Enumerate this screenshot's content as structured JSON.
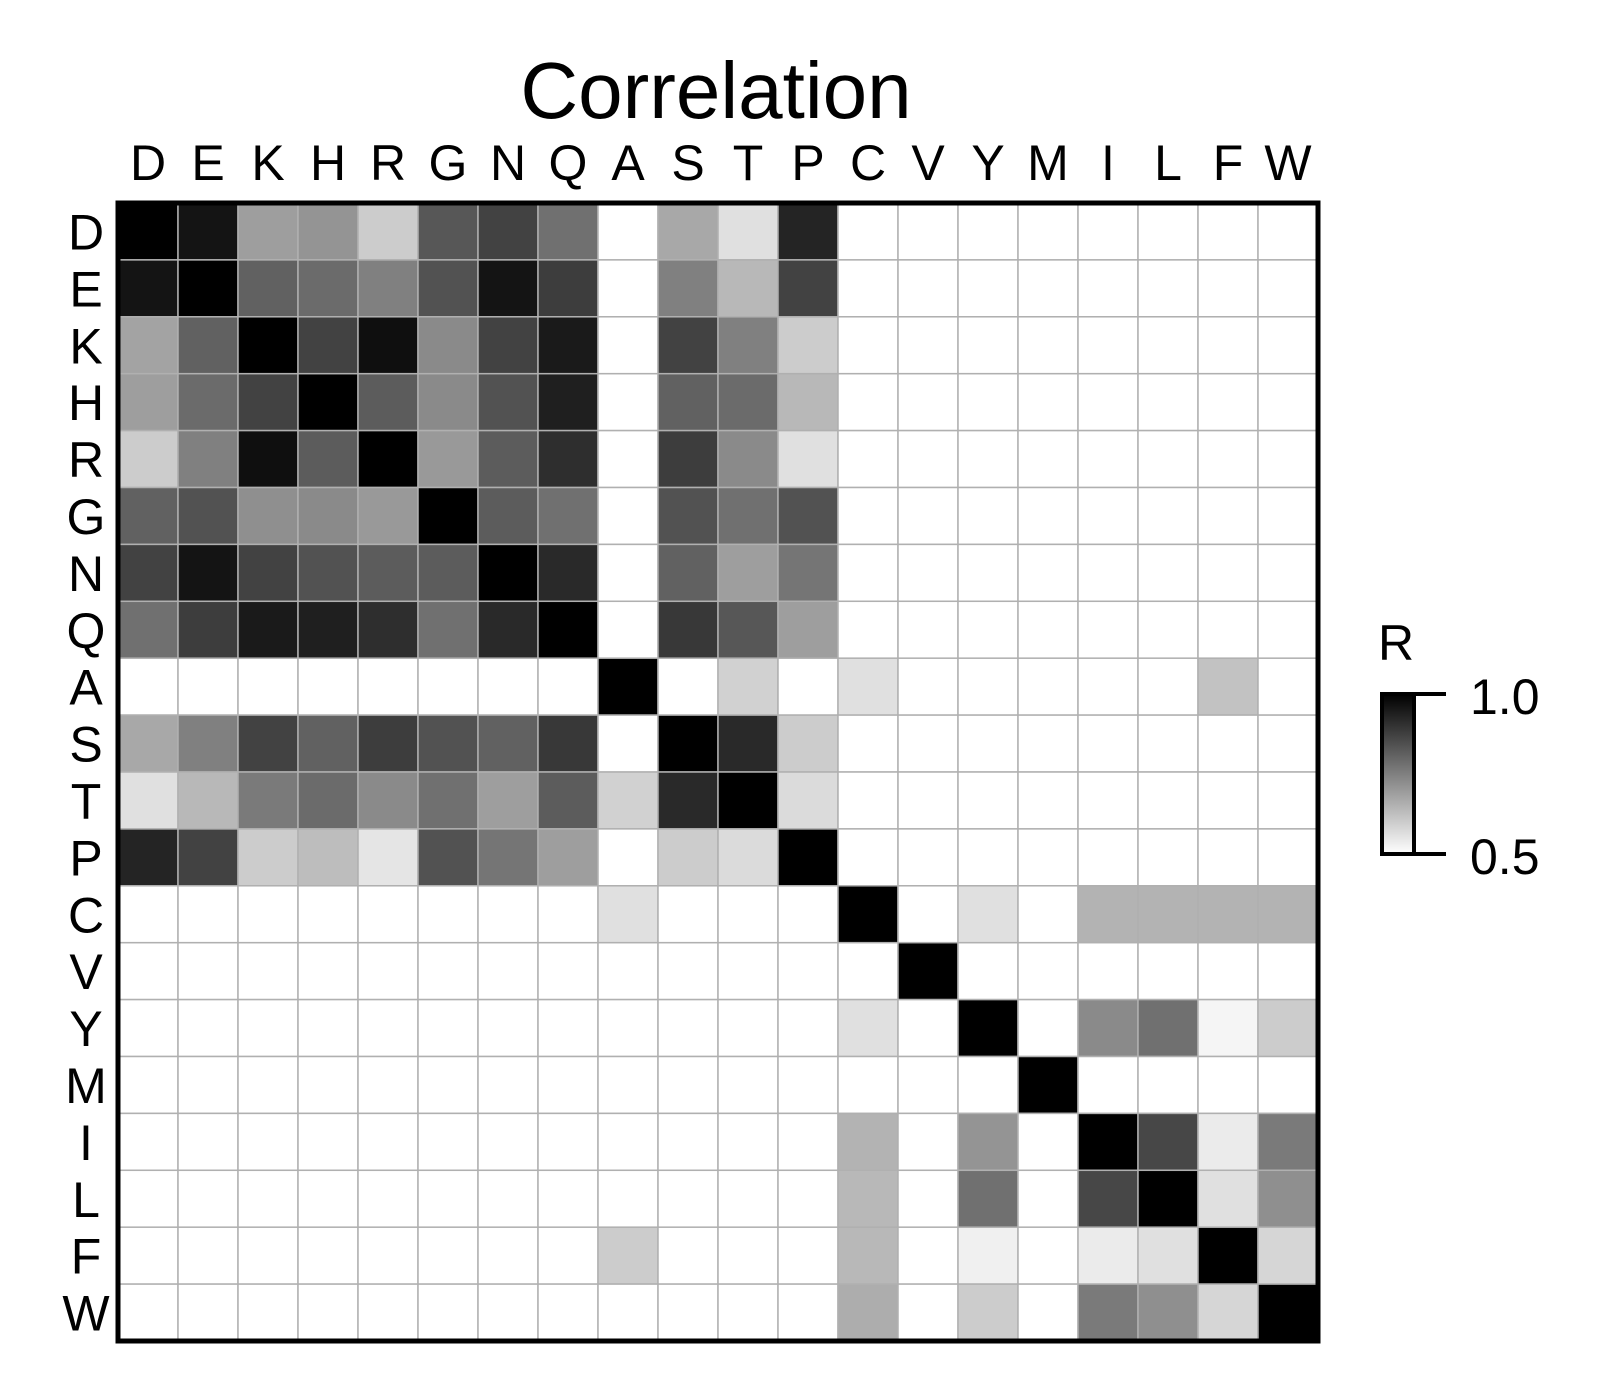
{
  "chart_data": {
    "type": "heatmap",
    "title": "Correlation",
    "labels": [
      "D",
      "E",
      "K",
      "H",
      "R",
      "G",
      "N",
      "Q",
      "A",
      "S",
      "T",
      "P",
      "C",
      "V",
      "Y",
      "M",
      "I",
      "L",
      "F",
      "W"
    ],
    "value_range": [
      0.5,
      1.0
    ],
    "colors": {
      "low": "#ffffff",
      "high": "#000000",
      "grid": "#b0b0b0",
      "frame": "#000000"
    },
    "legend": {
      "label": "R",
      "max_label": "1.0",
      "min_label": "0.5",
      "placement": "right"
    },
    "matrix": [
      [
        1.0,
        0.96,
        0.69,
        0.71,
        0.6,
        0.83,
        0.87,
        0.78,
        0.5,
        0.67,
        0.56,
        0.93,
        0.5,
        0.5,
        0.5,
        0.5,
        0.5,
        0.5,
        0.5,
        0.5
      ],
      [
        0.96,
        1.0,
        0.81,
        0.79,
        0.75,
        0.84,
        0.96,
        0.88,
        0.5,
        0.75,
        0.64,
        0.87,
        0.5,
        0.5,
        0.5,
        0.5,
        0.5,
        0.5,
        0.5,
        0.5
      ],
      [
        0.68,
        0.81,
        1.0,
        0.87,
        0.97,
        0.73,
        0.87,
        0.95,
        0.5,
        0.87,
        0.75,
        0.6,
        0.5,
        0.5,
        0.5,
        0.5,
        0.5,
        0.5,
        0.5,
        0.5
      ],
      [
        0.69,
        0.79,
        0.87,
        1.0,
        0.82,
        0.73,
        0.84,
        0.94,
        0.5,
        0.81,
        0.79,
        0.64,
        0.5,
        0.5,
        0.5,
        0.5,
        0.5,
        0.5,
        0.5,
        0.5
      ],
      [
        0.6,
        0.75,
        0.97,
        0.82,
        1.0,
        0.7,
        0.82,
        0.91,
        0.5,
        0.88,
        0.73,
        0.56,
        0.5,
        0.5,
        0.5,
        0.5,
        0.5,
        0.5,
        0.5,
        0.5
      ],
      [
        0.81,
        0.84,
        0.72,
        0.73,
        0.7,
        1.0,
        0.82,
        0.78,
        0.5,
        0.84,
        0.78,
        0.84,
        0.5,
        0.5,
        0.5,
        0.5,
        0.5,
        0.5,
        0.5,
        0.5
      ],
      [
        0.87,
        0.96,
        0.87,
        0.84,
        0.82,
        0.82,
        1.0,
        0.92,
        0.5,
        0.81,
        0.69,
        0.77,
        0.5,
        0.5,
        0.5,
        0.5,
        0.5,
        0.5,
        0.5,
        0.5
      ],
      [
        0.78,
        0.88,
        0.95,
        0.94,
        0.91,
        0.78,
        0.92,
        1.0,
        0.5,
        0.89,
        0.83,
        0.69,
        0.5,
        0.5,
        0.5,
        0.5,
        0.5,
        0.5,
        0.5,
        0.5
      ],
      [
        0.5,
        0.5,
        0.5,
        0.5,
        0.5,
        0.5,
        0.5,
        0.5,
        1.0,
        0.5,
        0.59,
        0.5,
        0.56,
        0.5,
        0.5,
        0.5,
        0.5,
        0.5,
        0.62,
        0.5
      ],
      [
        0.67,
        0.75,
        0.87,
        0.81,
        0.88,
        0.84,
        0.81,
        0.89,
        0.5,
        1.0,
        0.92,
        0.6,
        0.5,
        0.5,
        0.5,
        0.5,
        0.5,
        0.5,
        0.5,
        0.5
      ],
      [
        0.56,
        0.64,
        0.76,
        0.79,
        0.73,
        0.78,
        0.69,
        0.82,
        0.59,
        0.92,
        1.0,
        0.57,
        0.5,
        0.5,
        0.5,
        0.5,
        0.5,
        0.5,
        0.5,
        0.5
      ],
      [
        0.93,
        0.87,
        0.6,
        0.63,
        0.55,
        0.84,
        0.77,
        0.69,
        0.5,
        0.6,
        0.57,
        1.0,
        0.5,
        0.5,
        0.5,
        0.5,
        0.5,
        0.5,
        0.5,
        0.5
      ],
      [
        0.5,
        0.5,
        0.5,
        0.5,
        0.5,
        0.5,
        0.5,
        0.5,
        0.56,
        0.5,
        0.5,
        0.5,
        1.0,
        0.5,
        0.56,
        0.5,
        0.65,
        0.65,
        0.65,
        0.65
      ],
      [
        0.5,
        0.5,
        0.5,
        0.5,
        0.5,
        0.5,
        0.5,
        0.5,
        0.5,
        0.5,
        0.5,
        0.5,
        0.5,
        1.0,
        0.5,
        0.5,
        0.5,
        0.5,
        0.5,
        0.5
      ],
      [
        0.5,
        0.5,
        0.5,
        0.5,
        0.5,
        0.5,
        0.5,
        0.5,
        0.5,
        0.5,
        0.5,
        0.5,
        0.56,
        0.5,
        1.0,
        0.5,
        0.73,
        0.78,
        0.52,
        0.6
      ],
      [
        0.5,
        0.5,
        0.5,
        0.5,
        0.5,
        0.5,
        0.5,
        0.5,
        0.5,
        0.5,
        0.5,
        0.5,
        0.5,
        0.5,
        0.5,
        1.0,
        0.5,
        0.5,
        0.5,
        0.5
      ],
      [
        0.5,
        0.5,
        0.5,
        0.5,
        0.5,
        0.5,
        0.5,
        0.5,
        0.5,
        0.5,
        0.5,
        0.5,
        0.65,
        0.5,
        0.71,
        0.5,
        1.0,
        0.86,
        0.54,
        0.76
      ],
      [
        0.5,
        0.5,
        0.5,
        0.5,
        0.5,
        0.5,
        0.5,
        0.5,
        0.5,
        0.5,
        0.5,
        0.5,
        0.64,
        0.5,
        0.78,
        0.5,
        0.86,
        1.0,
        0.56,
        0.72
      ],
      [
        0.5,
        0.5,
        0.5,
        0.5,
        0.5,
        0.5,
        0.5,
        0.5,
        0.6,
        0.5,
        0.5,
        0.5,
        0.64,
        0.5,
        0.53,
        0.5,
        0.54,
        0.56,
        1.0,
        0.58
      ],
      [
        0.5,
        0.5,
        0.5,
        0.5,
        0.5,
        0.5,
        0.5,
        0.5,
        0.5,
        0.5,
        0.5,
        0.5,
        0.66,
        0.5,
        0.6,
        0.5,
        0.76,
        0.72,
        0.58,
        1.0
      ]
    ]
  }
}
